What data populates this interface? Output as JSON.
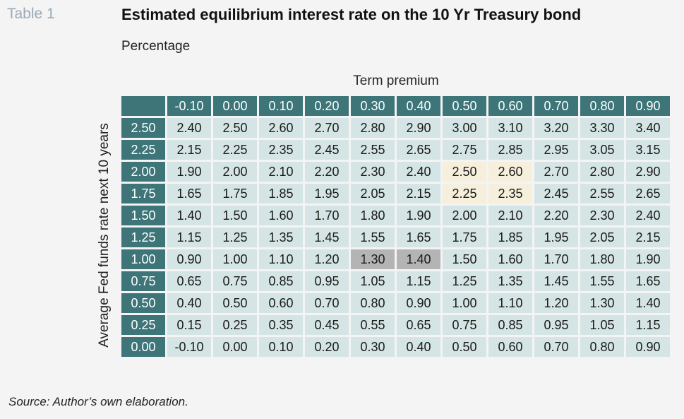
{
  "table_label": "Table 1",
  "title": "Estimated equilibrium interest rate on the 10 Yr Treasury bond",
  "subtitle": "Percentage",
  "column_axis_title": "Term premium",
  "row_axis_title": "Average Fed funds rate next 10 years",
  "source": "Source: Author’s own elaboration.",
  "colors": {
    "header_bg": "#3d7579",
    "cell_bg": "#d5e4e4",
    "highlight_yellow": "#f6efdc",
    "highlight_grey": "#b4b4b4"
  },
  "column_headers": [
    "-0.10",
    "0.00",
    "0.10",
    "0.20",
    "0.30",
    "0.40",
    "0.50",
    "0.60",
    "0.70",
    "0.80",
    "0.90"
  ],
  "rows": [
    {
      "header": "2.50",
      "values": [
        "2.40",
        "2.50",
        "2.60",
        "2.70",
        "2.80",
        "2.90",
        "3.00",
        "3.10",
        "3.20",
        "3.30",
        "3.40"
      ]
    },
    {
      "header": "2.25",
      "values": [
        "2.15",
        "2.25",
        "2.35",
        "2.45",
        "2.55",
        "2.65",
        "2.75",
        "2.85",
        "2.95",
        "3.05",
        "3.15"
      ]
    },
    {
      "header": "2.00",
      "values": [
        "1.90",
        "2.00",
        "2.10",
        "2.20",
        "2.30",
        "2.40",
        "2.50",
        "2.60",
        "2.70",
        "2.80",
        "2.90"
      ]
    },
    {
      "header": "1.75",
      "values": [
        "1.65",
        "1.75",
        "1.85",
        "1.95",
        "2.05",
        "2.15",
        "2.25",
        "2.35",
        "2.45",
        "2.55",
        "2.65"
      ]
    },
    {
      "header": "1.50",
      "values": [
        "1.40",
        "1.50",
        "1.60",
        "1.70",
        "1.80",
        "1.90",
        "2.00",
        "2.10",
        "2.20",
        "2.30",
        "2.40"
      ]
    },
    {
      "header": "1.25",
      "values": [
        "1.15",
        "1.25",
        "1.35",
        "1.45",
        "1.55",
        "1.65",
        "1.75",
        "1.85",
        "1.95",
        "2.05",
        "2.15"
      ]
    },
    {
      "header": "1.00",
      "values": [
        "0.90",
        "1.00",
        "1.10",
        "1.20",
        "1.30",
        "1.40",
        "1.50",
        "1.60",
        "1.70",
        "1.80",
        "1.90"
      ]
    },
    {
      "header": "0.75",
      "values": [
        "0.65",
        "0.75",
        "0.85",
        "0.95",
        "1.05",
        "1.15",
        "1.25",
        "1.35",
        "1.45",
        "1.55",
        "1.65"
      ]
    },
    {
      "header": "0.50",
      "values": [
        "0.40",
        "0.50",
        "0.60",
        "0.70",
        "0.80",
        "0.90",
        "1.00",
        "1.10",
        "1.20",
        "1.30",
        "1.40"
      ]
    },
    {
      "header": "0.25",
      "values": [
        "0.15",
        "0.25",
        "0.35",
        "0.45",
        "0.55",
        "0.65",
        "0.75",
        "0.85",
        "0.95",
        "1.05",
        "1.15"
      ]
    },
    {
      "header": "0.00",
      "values": [
        "-0.10",
        "0.00",
        "0.10",
        "0.20",
        "0.30",
        "0.40",
        "0.50",
        "0.60",
        "0.70",
        "0.80",
        "0.90"
      ]
    }
  ],
  "highlights": {
    "yellow": [
      [
        2,
        6
      ],
      [
        2,
        7
      ],
      [
        3,
        6
      ],
      [
        3,
        7
      ]
    ],
    "grey": [
      [
        6,
        4
      ],
      [
        6,
        5
      ]
    ]
  }
}
